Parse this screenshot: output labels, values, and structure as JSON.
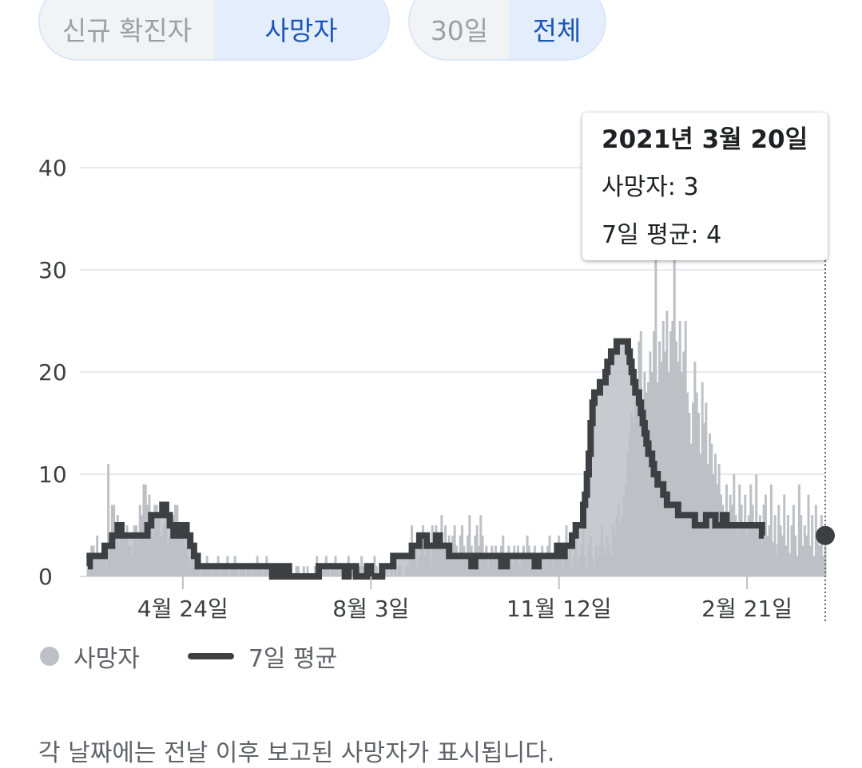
{
  "toggles": {
    "metric": {
      "options": [
        "신규 확진자",
        "사망자"
      ],
      "selected": "사망자"
    },
    "range": {
      "options": [
        "30일",
        "전체"
      ],
      "selected": "전체"
    }
  },
  "tooltip": {
    "date": "2021년 3월 20일",
    "deaths": "사망자: 3",
    "avg": "7일 평균: 4"
  },
  "legend": {
    "deaths": "사망자",
    "avg": "7일 평균"
  },
  "note": "각 날짜에는 전날 이후 보고된 사망자가 표시됩니다.",
  "colors": {
    "bars": "#bdc1c6",
    "line": "#3c4043",
    "accent": "#1a56b8",
    "grid": "#e8eaed"
  },
  "chart_data": {
    "type": "bar",
    "ylim": [
      0,
      40
    ],
    "yticks": [
      0,
      10,
      20,
      30,
      40
    ],
    "xticks": [
      "4월 24일",
      "8월 3일",
      "11월 12일",
      "2월 21일"
    ],
    "xtick_index": [
      51,
      152,
      253,
      354
    ],
    "series": [
      {
        "name": "사망자",
        "values": [
          1,
          2,
          3,
          3,
          2,
          4,
          2,
          2,
          3,
          2,
          1,
          11,
          3,
          7,
          7,
          4,
          6,
          3,
          5,
          4,
          4,
          5,
          3,
          3,
          2,
          5,
          5,
          3,
          7,
          6,
          9,
          9,
          7,
          8,
          5,
          4,
          7,
          7,
          6,
          4,
          4,
          5,
          7,
          3,
          4,
          5,
          6,
          7,
          7,
          5,
          4,
          5,
          3,
          4,
          2,
          1,
          2,
          1,
          1,
          2,
          1,
          0,
          1,
          1,
          2,
          1,
          1,
          0,
          1,
          1,
          2,
          0,
          1,
          1,
          1,
          2,
          0,
          1,
          1,
          2,
          1,
          0,
          1,
          1,
          1,
          0,
          1,
          1,
          0,
          1,
          1,
          2,
          1,
          1,
          0,
          1,
          2,
          1,
          0,
          0,
          1,
          1,
          0,
          1,
          1,
          0,
          0,
          1,
          0,
          1,
          0,
          0,
          1,
          1,
          0,
          0,
          1,
          0,
          1,
          0,
          0,
          0,
          1,
          2,
          1,
          0,
          1,
          1,
          2,
          1,
          0,
          1,
          1,
          2,
          1,
          0,
          1,
          0,
          1,
          1,
          2,
          0,
          1,
          1,
          0,
          0,
          1,
          2,
          1,
          0,
          1,
          1,
          0,
          1,
          2,
          1,
          0,
          0,
          1,
          0,
          1,
          0,
          0,
          1,
          0,
          1,
          0,
          1,
          1,
          0,
          0,
          1,
          1,
          2,
          5,
          2,
          3,
          1,
          2,
          4,
          5,
          2,
          3,
          4,
          1,
          5,
          3,
          5,
          4,
          4,
          6,
          3,
          5,
          3,
          4,
          2,
          4,
          5,
          3,
          2,
          4,
          5,
          3,
          2,
          4,
          6,
          3,
          2,
          4,
          5,
          3,
          6,
          4,
          2,
          3,
          1,
          2,
          3,
          2,
          3,
          1,
          2,
          3,
          4,
          2,
          1,
          3,
          2,
          1,
          3,
          2,
          3,
          1,
          2,
          3,
          2,
          4,
          3,
          1,
          2,
          3,
          2,
          1,
          2,
          3,
          2,
          1,
          3,
          4,
          2,
          1,
          3,
          2,
          4,
          3,
          1,
          2,
          5,
          2,
          3,
          1,
          2,
          4,
          1,
          2,
          3,
          5,
          2,
          1,
          3,
          4,
          2,
          1,
          3,
          2,
          3,
          5,
          3,
          2,
          4,
          3,
          2,
          5,
          4,
          6,
          7,
          5,
          6,
          8,
          9,
          12,
          14,
          16,
          15,
          18,
          17,
          23,
          24,
          16,
          20,
          18,
          19,
          22,
          20,
          24,
          31,
          19,
          23,
          21,
          25,
          22,
          26,
          20,
          24,
          25,
          31,
          23,
          21,
          25,
          20,
          22,
          25,
          18,
          16,
          13,
          17,
          21,
          18,
          16,
          12,
          19,
          15,
          17,
          11,
          14,
          13,
          10,
          12,
          9,
          11,
          8,
          7,
          6,
          9,
          5,
          8,
          7,
          10,
          6,
          4,
          9,
          7,
          5,
          8,
          4,
          6,
          9,
          7,
          5,
          10,
          4,
          6,
          3,
          7,
          8,
          4,
          5,
          9,
          3,
          6,
          2,
          7,
          5,
          4,
          8,
          3,
          6,
          2,
          5,
          7,
          4,
          2,
          9,
          6,
          3,
          5,
          4,
          8,
          3,
          6,
          2,
          7,
          4,
          3,
          6,
          2,
          3
        ]
      },
      {
        "name": "7일 평균",
        "values": [
          1,
          2,
          2,
          2,
          2,
          2,
          2,
          2,
          2,
          3,
          3,
          3,
          3,
          4,
          4,
          4,
          5,
          5,
          4,
          4,
          4,
          4,
          4,
          4,
          4,
          4,
          4,
          4,
          4,
          4,
          4,
          4,
          5,
          5,
          6,
          6,
          6,
          6,
          6,
          6,
          7,
          7,
          6,
          6,
          5,
          5,
          4,
          5,
          5,
          5,
          4,
          5,
          5,
          4,
          4,
          3,
          3,
          2,
          2,
          1,
          1,
          1,
          1,
          1,
          1,
          1,
          1,
          1,
          1,
          1,
          1,
          1,
          1,
          1,
          1,
          1,
          1,
          1,
          1,
          1,
          1,
          1,
          1,
          1,
          1,
          1,
          1,
          1,
          1,
          1,
          1,
          1,
          1,
          1,
          1,
          1,
          1,
          1,
          1,
          0,
          0,
          1,
          1,
          0,
          0,
          1,
          1,
          1,
          0,
          0,
          0,
          0,
          0,
          0,
          0,
          0,
          0,
          0,
          0,
          0,
          0,
          0,
          0,
          0,
          1,
          1,
          1,
          1,
          1,
          1,
          1,
          1,
          1,
          1,
          1,
          1,
          1,
          1,
          0,
          0,
          1,
          1,
          1,
          1,
          0,
          0,
          0,
          0,
          0,
          0,
          1,
          1,
          0,
          0,
          0,
          0,
          0,
          0,
          1,
          1,
          1,
          1,
          1,
          1,
          2,
          2,
          2,
          2,
          2,
          2,
          2,
          2,
          2,
          2,
          3,
          3,
          3,
          3,
          4,
          4,
          4,
          4,
          3,
          3,
          3,
          3,
          3,
          4,
          4,
          3,
          3,
          3,
          3,
          3,
          2,
          2,
          2,
          2,
          2,
          2,
          2,
          2,
          2,
          2,
          2,
          2,
          1,
          1,
          2,
          2,
          2,
          2,
          2,
          2,
          2,
          2,
          2,
          2,
          2,
          2,
          2,
          2,
          1,
          1,
          1,
          2,
          2,
          2,
          2,
          2,
          2,
          2,
          2,
          2,
          2,
          2,
          2,
          2,
          2,
          2,
          1,
          1,
          2,
          2,
          2,
          2,
          2,
          2,
          2,
          2,
          2,
          2,
          3,
          3,
          2,
          2,
          3,
          3,
          3,
          3,
          4,
          4,
          5,
          5,
          5,
          5,
          7,
          8,
          10,
          12,
          15,
          17,
          18,
          18,
          18,
          19,
          19,
          19,
          20,
          21,
          21,
          22,
          22,
          22,
          23,
          23,
          23,
          23,
          23,
          23,
          22,
          21,
          20,
          19,
          18,
          18,
          17,
          16,
          15,
          14,
          13,
          12,
          12,
          11,
          10,
          10,
          9,
          9,
          9,
          8,
          8,
          7,
          7,
          7,
          7,
          7,
          7,
          6,
          6,
          6,
          6,
          6,
          6,
          6,
          6,
          6,
          5,
          5,
          5,
          5,
          5,
          5,
          6,
          6,
          6,
          6,
          6,
          5,
          5,
          5,
          5,
          6,
          6,
          5,
          5,
          5,
          5,
          5,
          5,
          5,
          5,
          5,
          5,
          5,
          5,
          5,
          5,
          5,
          5,
          5,
          5,
          5,
          4,
          4
        ]
      }
    ],
    "highlight": {
      "date": "2021년 3월 20일",
      "deaths": 3,
      "avg": 4
    }
  }
}
